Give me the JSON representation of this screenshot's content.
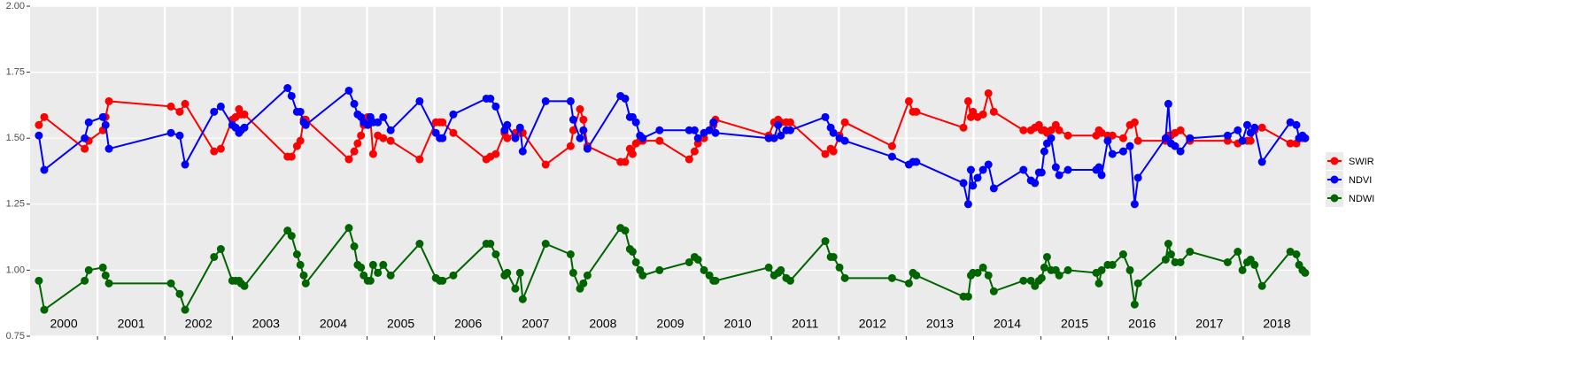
{
  "chart_data": {
    "type": "line",
    "x": [
      2000.13,
      2000.21,
      2000.81,
      2000.87,
      2001.08,
      2001.12,
      2001.17,
      2002.09,
      2002.22,
      2002.3,
      2002.73,
      2002.83,
      2003.0,
      2003.05,
      2003.1,
      2003.13,
      2003.18,
      2003.82,
      2003.88,
      2003.96,
      2004.01,
      2004.06,
      2004.09,
      2004.73,
      2004.81,
      2004.86,
      2004.91,
      2004.95,
      2005.01,
      2005.05,
      2005.09,
      2005.16,
      2005.24,
      2005.35,
      2005.78,
      2006.02,
      2006.08,
      2006.12,
      2006.28,
      2006.77,
      2006.83,
      2006.91,
      2007.04,
      2007.08,
      2007.2,
      2007.27,
      2007.31,
      2007.65,
      2008.02,
      2008.06,
      2008.16,
      2008.21,
      2008.27,
      2008.76,
      2008.83,
      2008.9,
      2008.94,
      2008.99,
      2009.05,
      2009.09,
      2009.34,
      2009.78,
      2009.86,
      2009.91,
      2010.0,
      2010.08,
      2010.14,
      2010.17,
      2010.96,
      2011.04,
      2011.1,
      2011.14,
      2011.22,
      2011.28,
      2011.8,
      2011.88,
      2011.92,
      2012.01,
      2012.09,
      2012.79,
      2013.04,
      2013.1,
      2013.15,
      2013.85,
      2013.92,
      2013.96,
      2013.99,
      2014.06,
      2014.14,
      2014.22,
      2014.3,
      2014.74,
      2014.85,
      2014.91,
      2014.97,
      2015.01,
      2015.05,
      2015.09,
      2015.15,
      2015.22,
      2015.27,
      2015.4,
      2015.82,
      2015.86,
      2015.9,
      2015.99,
      2016.06,
      2016.22,
      2016.32,
      2016.39,
      2016.44,
      2016.85,
      2016.89,
      2016.93,
      2016.99,
      2017.07,
      2017.21,
      2017.77,
      2017.92,
      2017.99,
      2018.06,
      2018.11,
      2018.17,
      2018.28,
      2018.7,
      2018.79,
      2018.83,
      2018.88,
      2018.92
    ],
    "series": [
      {
        "name": "SWIR",
        "color": "#ff0000",
        "values": [
          1.55,
          1.58,
          1.46,
          1.49,
          1.53,
          1.58,
          1.64,
          1.62,
          1.6,
          1.63,
          1.45,
          1.46,
          1.57,
          1.58,
          1.61,
          1.59,
          1.59,
          1.43,
          1.43,
          1.47,
          1.49,
          1.57,
          1.57,
          1.42,
          1.45,
          1.48,
          1.51,
          1.55,
          1.58,
          1.57,
          1.44,
          1.51,
          1.5,
          1.49,
          1.42,
          1.56,
          1.56,
          1.56,
          1.52,
          1.42,
          1.43,
          1.44,
          1.52,
          1.5,
          1.52,
          1.52,
          1.52,
          1.4,
          1.47,
          1.53,
          1.61,
          1.57,
          1.47,
          1.41,
          1.41,
          1.46,
          1.44,
          1.48,
          1.49,
          1.49,
          1.49,
          1.42,
          1.45,
          1.48,
          1.5,
          1.53,
          1.55,
          1.57,
          1.51,
          1.56,
          1.57,
          1.56,
          1.56,
          1.56,
          1.44,
          1.46,
          1.45,
          1.51,
          1.56,
          1.47,
          1.64,
          1.6,
          1.6,
          1.54,
          1.64,
          1.58,
          1.6,
          1.58,
          1.59,
          1.67,
          1.6,
          1.53,
          1.53,
          1.54,
          1.55,
          1.53,
          1.53,
          1.52,
          1.53,
          1.55,
          1.53,
          1.51,
          1.51,
          1.53,
          1.52,
          1.51,
          1.51,
          1.5,
          1.55,
          1.56,
          1.49,
          1.49,
          1.51,
          1.51,
          1.52,
          1.53,
          1.49,
          1.49,
          1.48,
          1.49,
          1.49,
          1.49,
          1.53,
          1.54,
          1.48,
          1.48,
          1.5,
          1.5,
          1.5
        ]
      },
      {
        "name": "NDVI",
        "color": "#0000ff",
        "values": [
          1.51,
          1.38,
          1.5,
          1.56,
          1.58,
          1.55,
          1.46,
          1.52,
          1.51,
          1.4,
          1.6,
          1.62,
          1.55,
          1.54,
          1.52,
          1.53,
          1.54,
          1.69,
          1.66,
          1.6,
          1.6,
          1.56,
          1.55,
          1.68,
          1.63,
          1.59,
          1.58,
          1.56,
          1.55,
          1.58,
          1.56,
          1.56,
          1.58,
          1.53,
          1.64,
          1.52,
          1.5,
          1.5,
          1.59,
          1.65,
          1.65,
          1.62,
          1.53,
          1.55,
          1.5,
          1.54,
          1.45,
          1.64,
          1.64,
          1.57,
          1.5,
          1.53,
          1.46,
          1.66,
          1.65,
          1.58,
          1.58,
          1.56,
          1.51,
          1.5,
          1.53,
          1.53,
          1.53,
          1.5,
          1.52,
          1.53,
          1.56,
          1.52,
          1.5,
          1.5,
          1.55,
          1.51,
          1.53,
          1.53,
          1.58,
          1.54,
          1.52,
          1.5,
          1.49,
          1.43,
          1.4,
          1.41,
          1.41,
          1.33,
          1.25,
          1.38,
          1.32,
          1.35,
          1.38,
          1.4,
          1.31,
          1.38,
          1.34,
          1.33,
          1.37,
          1.37,
          1.45,
          1.48,
          1.5,
          1.39,
          1.36,
          1.38,
          1.38,
          1.39,
          1.36,
          1.49,
          1.44,
          1.45,
          1.47,
          1.25,
          1.35,
          1.5,
          1.63,
          1.48,
          1.47,
          1.45,
          1.5,
          1.51,
          1.53,
          1.49,
          1.55,
          1.52,
          1.54,
          1.41,
          1.56,
          1.55,
          1.5,
          1.51,
          1.5
        ]
      },
      {
        "name": "NDWI",
        "color": "#006400",
        "values": [
          0.96,
          0.85,
          0.96,
          1.0,
          1.01,
          0.98,
          0.95,
          0.95,
          0.91,
          0.85,
          1.05,
          1.08,
          0.96,
          0.96,
          0.96,
          0.95,
          0.94,
          1.15,
          1.13,
          1.06,
          1.02,
          0.98,
          0.95,
          1.16,
          1.09,
          1.02,
          1.01,
          0.98,
          0.96,
          0.96,
          1.02,
          0.99,
          1.02,
          0.98,
          1.1,
          0.97,
          0.96,
          0.96,
          0.98,
          1.1,
          1.1,
          1.06,
          0.98,
          0.99,
          0.93,
          0.99,
          0.89,
          1.1,
          1.06,
          0.99,
          0.93,
          0.95,
          0.98,
          1.16,
          1.15,
          1.08,
          1.07,
          1.03,
          1.0,
          0.98,
          1.0,
          1.03,
          1.05,
          1.04,
          1.0,
          0.98,
          0.96,
          0.96,
          1.01,
          0.98,
          0.99,
          1.0,
          0.97,
          0.96,
          1.11,
          1.05,
          1.05,
          1.01,
          0.97,
          0.97,
          0.95,
          0.99,
          0.98,
          0.9,
          0.9,
          0.98,
          0.99,
          0.99,
          1.01,
          0.98,
          0.92,
          0.96,
          0.96,
          0.94,
          0.96,
          0.97,
          1.01,
          1.05,
          1.0,
          1.0,
          0.98,
          1.0,
          0.99,
          0.95,
          1.0,
          1.02,
          1.02,
          1.06,
          1.0,
          0.87,
          0.95,
          1.04,
          1.1,
          1.06,
          1.03,
          1.03,
          1.07,
          1.03,
          1.07,
          1.0,
          1.03,
          1.04,
          1.02,
          0.94,
          1.07,
          1.06,
          1.02,
          1.0,
          0.99
        ]
      }
    ],
    "xlim": [
      2000,
      2019
    ],
    "xticks": [
      2001,
      2002,
      2003,
      2004,
      2005,
      2006,
      2007,
      2008,
      2009,
      2010,
      2011,
      2012,
      2013,
      2014,
      2015,
      2016,
      2017,
      2018
    ],
    "year_labels": [
      2000,
      2001,
      2002,
      2003,
      2004,
      2005,
      2006,
      2007,
      2008,
      2009,
      2010,
      2011,
      2012,
      2013,
      2014,
      2015,
      2016,
      2017,
      2018
    ],
    "ylim": [
      0.75,
      2.0
    ],
    "yticks": [
      {
        "value": 0.75,
        "label": "0.75"
      },
      {
        "value": 1.0,
        "label": "1.00"
      },
      {
        "value": 1.25,
        "label": "1.25"
      },
      {
        "value": 1.5,
        "label": "1.50"
      },
      {
        "value": 1.75,
        "label": "1.75"
      },
      {
        "value": 2.0,
        "label": "2.00"
      }
    ],
    "grid": true,
    "legend": "right"
  }
}
